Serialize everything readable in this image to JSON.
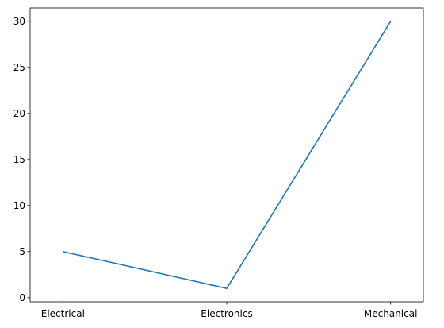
{
  "chart_data": {
    "type": "line",
    "title": "",
    "xlabel": "",
    "ylabel": "",
    "categories": [
      "Electrical",
      "Electronics",
      "Mechanical"
    ],
    "series": [
      {
        "values": [
          5,
          1,
          30
        ],
        "color": "#1f77b4"
      }
    ],
    "ylim": [
      -0.45,
      31.45
    ],
    "yticks": [
      0,
      5,
      10,
      15,
      20,
      25,
      30
    ],
    "grid": false,
    "legend": "none"
  }
}
